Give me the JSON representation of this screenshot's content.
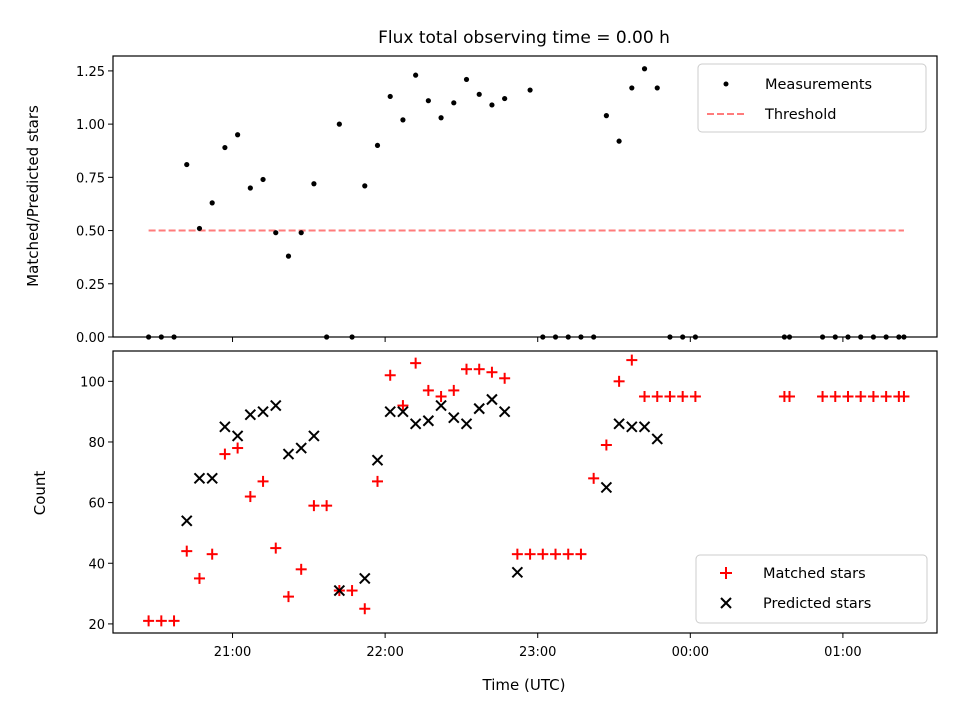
{
  "chart_data": [
    {
      "type": "scatter",
      "title": "Flux total observing time = 0.00 h",
      "xlabel": "",
      "ylabel": "Matched/Predicted stars",
      "ylim": [
        0,
        1.32
      ],
      "yticks": [
        "0.00",
        "0.25",
        "0.50",
        "0.75",
        "1.00",
        "1.25"
      ],
      "legend_position": "top-right",
      "threshold": {
        "name": "Threshold",
        "value": 0.5,
        "x_start": "20:27",
        "x_end": "01:24",
        "color": "#ff7b7b"
      },
      "series": [
        {
          "name": "Measurements",
          "color": "#000000",
          "x": [
            "20:27",
            "20:32",
            "20:37",
            "20:42",
            "20:47",
            "20:52",
            "20:57",
            "21:02",
            "21:07",
            "21:12",
            "21:17",
            "21:22",
            "21:27",
            "21:32",
            "21:37",
            "21:42",
            "21:47",
            "21:52",
            "21:57",
            "22:02",
            "22:07",
            "22:12",
            "22:17",
            "22:22",
            "22:27",
            "22:32",
            "22:37",
            "22:42",
            "22:47",
            "22:57",
            "23:02",
            "23:07",
            "23:12",
            "23:17",
            "23:22",
            "23:27",
            "23:32",
            "23:37",
            "23:42",
            "23:47",
            "23:52",
            "23:57",
            "00:02",
            "00:37",
            "00:39",
            "00:52",
            "00:57",
            "01:02",
            "01:07",
            "01:12",
            "01:17",
            "01:22",
            "01:24"
          ],
          "y": [
            0,
            0,
            0,
            0.81,
            0.51,
            0.63,
            0.89,
            0.95,
            0.7,
            0.74,
            0.49,
            0.38,
            0.49,
            0.72,
            0,
            1.0,
            0,
            0.71,
            0.9,
            1.13,
            1.02,
            1.23,
            1.11,
            1.03,
            1.1,
            1.21,
            1.14,
            1.09,
            1.12,
            1.16,
            0,
            0,
            0,
            0,
            0,
            1.04,
            0.92,
            1.17,
            1.26,
            1.17,
            0,
            0,
            0,
            0,
            0,
            0,
            0,
            0,
            0,
            0,
            0,
            0,
            0
          ]
        }
      ]
    },
    {
      "type": "scatter",
      "title": "",
      "xlabel": "Time (UTC)",
      "ylabel": "Count",
      "ylim": [
        17,
        110
      ],
      "yticks": [
        "20",
        "40",
        "60",
        "80",
        "100"
      ],
      "xticks": [
        "21:00",
        "22:00",
        "23:00",
        "00:00",
        "01:00"
      ],
      "legend_position": "bottom-right",
      "series": [
        {
          "name": "Matched stars",
          "color": "#ff0000",
          "marker": "plus",
          "x": [
            "20:27",
            "20:32",
            "20:37",
            "20:42",
            "20:47",
            "20:52",
            "20:57",
            "21:02",
            "21:07",
            "21:12",
            "21:17",
            "21:22",
            "21:27",
            "21:32",
            "21:37",
            "21:42",
            "21:47",
            "21:52",
            "21:57",
            "22:02",
            "22:07",
            "22:12",
            "22:17",
            "22:22",
            "22:27",
            "22:32",
            "22:37",
            "22:42",
            "22:47",
            "22:52",
            "22:57",
            "23:02",
            "23:07",
            "23:12",
            "23:17",
            "23:22",
            "23:27",
            "23:32",
            "23:37",
            "23:42",
            "23:47",
            "23:52",
            "23:57",
            "00:02",
            "00:37",
            "00:39",
            "00:52",
            "00:57",
            "01:02",
            "01:07",
            "01:12",
            "01:17",
            "01:22",
            "01:24"
          ],
          "y": [
            21,
            21,
            21,
            44,
            35,
            43,
            76,
            78,
            62,
            67,
            45,
            29,
            38,
            59,
            59,
            31,
            31,
            25,
            67,
            102,
            92,
            106,
            97,
            95,
            97,
            104,
            104,
            103,
            101,
            43,
            43,
            43,
            43,
            43,
            43,
            68,
            79,
            100,
            107,
            95,
            95,
            95,
            95,
            95,
            95,
            95,
            95,
            95,
            95,
            95,
            95,
            95,
            95,
            95
          ]
        },
        {
          "name": "Predicted stars",
          "color": "#000000",
          "marker": "x",
          "x": [
            "20:42",
            "20:47",
            "20:52",
            "20:57",
            "21:02",
            "21:07",
            "21:12",
            "21:17",
            "21:22",
            "21:27",
            "21:32",
            "21:42",
            "21:52",
            "21:57",
            "22:02",
            "22:07",
            "22:12",
            "22:17",
            "22:22",
            "22:27",
            "22:32",
            "22:37",
            "22:42",
            "22:47",
            "22:52",
            "23:27",
            "23:32",
            "23:37",
            "23:42",
            "23:47"
          ],
          "y": [
            54,
            68,
            68,
            85,
            82,
            89,
            90,
            92,
            76,
            78,
            82,
            31,
            35,
            74,
            90,
            90,
            86,
            87,
            92,
            88,
            86,
            91,
            94,
            90,
            37,
            65,
            86,
            85,
            85,
            81
          ]
        }
      ]
    }
  ]
}
